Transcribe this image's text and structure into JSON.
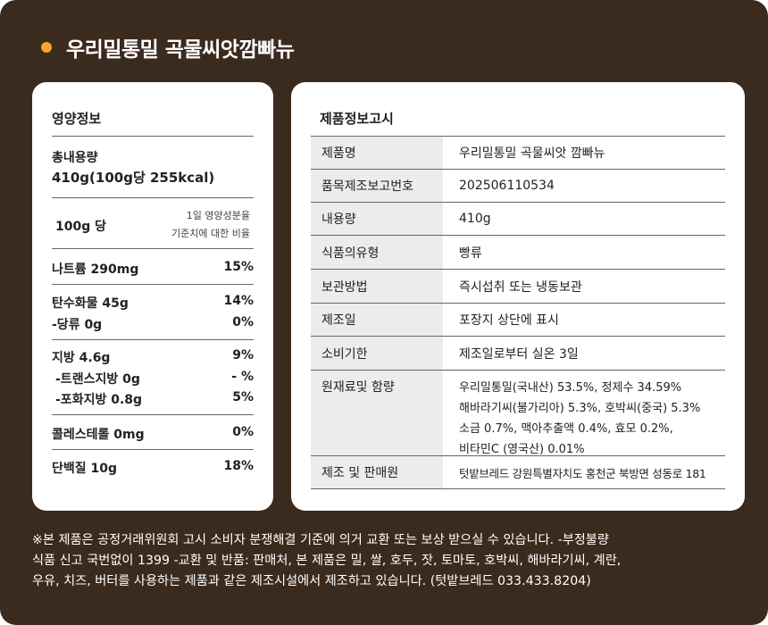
{
  "title": "우리밀통밀 곡물씨앗깜빠뉴",
  "nutrition": {
    "heading": "영양정보",
    "total_label": "총내용량",
    "total_value": "410g(100g당 255kcal)",
    "per_label": "100g 당",
    "dv_header_line1": "1일 영양성분율",
    "dv_header_line2": "기준치에 대한 비율",
    "rows": [
      {
        "name": "나트륨 290mg",
        "pct": "15%"
      },
      {
        "name": "탄수화물 45g",
        "pct": "14%"
      },
      {
        "name": "-당류  0g",
        "pct": "0%"
      },
      {
        "name": "지방  4.6g",
        "pct": "9%"
      },
      {
        "name": "-트랜스지방 0g",
        "pct": "- %"
      },
      {
        "name": "-포화지방 0.8g",
        "pct": "5%"
      },
      {
        "name": "콜레스테롤  0mg",
        "pct": "0%"
      },
      {
        "name": "단백질 10g",
        "pct": "18%"
      }
    ]
  },
  "product": {
    "heading": "제품정보고시",
    "rows": [
      {
        "label": "제품명",
        "value": "우리밀통밀 곡물씨앗 깜빠뉴"
      },
      {
        "label": "품목제조보고번호",
        "value": "202506110534"
      },
      {
        "label": "내용량",
        "value": "410g"
      },
      {
        "label": "식품의유형",
        "value": "빵류"
      },
      {
        "label": "보관방법",
        "value": "즉시섭취 또는 냉동보관"
      },
      {
        "label": "제조일",
        "value": "포장지 상단에 표시"
      },
      {
        "label": "소비기한",
        "value": "제조일로부터 실온 3일"
      },
      {
        "label": "원재료및 함량",
        "lines": [
          "우리밀통밀(국내산) 53.5%, 정제수 34.59%",
          "해바라기씨(불가리아) 5.3%, 호박씨(중국) 5.3%",
          "소금 0.7%, 맥아추출액 0.4%, 효모 0.2%,",
          "비타민C (영국산) 0.01%"
        ]
      },
      {
        "label": "제조 및 판매원",
        "value": "텃밭브레드  강원특별자치도 홍천군 북방면 성동로 181"
      }
    ]
  },
  "footer": {
    "line1": "※본 제품은 공정거래위원회 고시 소비자 분쟁해결 기준에 의거 교환 또는 보상 받으실 수 있습니다. -부정불량",
    "line2": "식품 신고 국번없이 1399 -교환 및 반품: 판매처, 본 제품은 밀, 쌀, 호두, 잣, 토마토, 호박씨, 해바라기씨, 계란,",
    "line3": "우유, 치즈, 버터를 사용하는 제품과 같은 제조시설에서 제조하고 있습니다. (텃밭브레드 033.433.8204)"
  }
}
